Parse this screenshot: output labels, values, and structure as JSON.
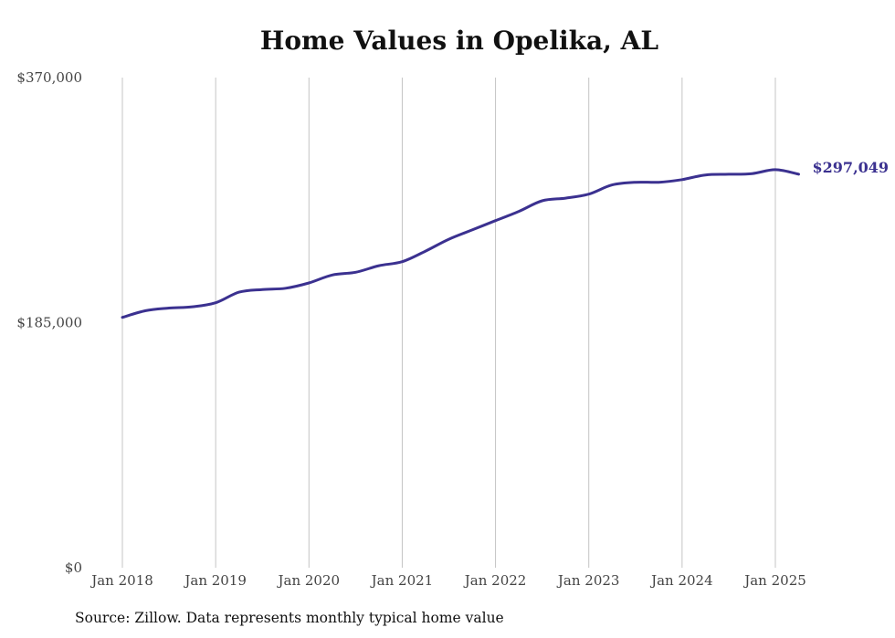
{
  "chart_data": {
    "type": "line",
    "title": "Home Values in Opelika, AL",
    "ylim": [
      0,
      370000
    ],
    "y_ticks": [
      {
        "value": 0,
        "label": "$0"
      },
      {
        "value": 185000,
        "label": "$185,000"
      },
      {
        "value": 370000,
        "label": "$370,000"
      }
    ],
    "x_ticks": [
      {
        "value": 2018.0,
        "label": "Jan 2018"
      },
      {
        "value": 2019.0,
        "label": "Jan 2019"
      },
      {
        "value": 2020.0,
        "label": "Jan 2020"
      },
      {
        "value": 2021.0,
        "label": "Jan 2021"
      },
      {
        "value": 2022.0,
        "label": "Jan 2022"
      },
      {
        "value": 2023.0,
        "label": "Jan 2023"
      },
      {
        "value": 2024.0,
        "label": "Jan 2024"
      },
      {
        "value": 2025.0,
        "label": "Jan 2025"
      }
    ],
    "grid": "vertical",
    "line_color": "#3b3190",
    "end_label": "$297,049",
    "series": [
      {
        "points": [
          [
            2018.0,
            189000
          ],
          [
            2018.25,
            194000
          ],
          [
            2018.5,
            196000
          ],
          [
            2018.75,
            197000
          ],
          [
            2019.0,
            200000
          ],
          [
            2019.25,
            208000
          ],
          [
            2019.5,
            210000
          ],
          [
            2019.75,
            211000
          ],
          [
            2020.0,
            215000
          ],
          [
            2020.25,
            221000
          ],
          [
            2020.5,
            223000
          ],
          [
            2020.75,
            228000
          ],
          [
            2021.0,
            231000
          ],
          [
            2021.25,
            239000
          ],
          [
            2021.5,
            248000
          ],
          [
            2021.75,
            255000
          ],
          [
            2022.0,
            262000
          ],
          [
            2022.25,
            269000
          ],
          [
            2022.5,
            277000
          ],
          [
            2022.75,
            279000
          ],
          [
            2023.0,
            282000
          ],
          [
            2023.25,
            289000
          ],
          [
            2023.5,
            291000
          ],
          [
            2023.75,
            291000
          ],
          [
            2024.0,
            293000
          ],
          [
            2024.25,
            296500
          ],
          [
            2024.5,
            297000
          ],
          [
            2024.75,
            297500
          ],
          [
            2025.0,
            300500
          ],
          [
            2025.25,
            297049
          ]
        ]
      }
    ]
  },
  "source": "Source: Zillow. Data represents monthly typical home value"
}
